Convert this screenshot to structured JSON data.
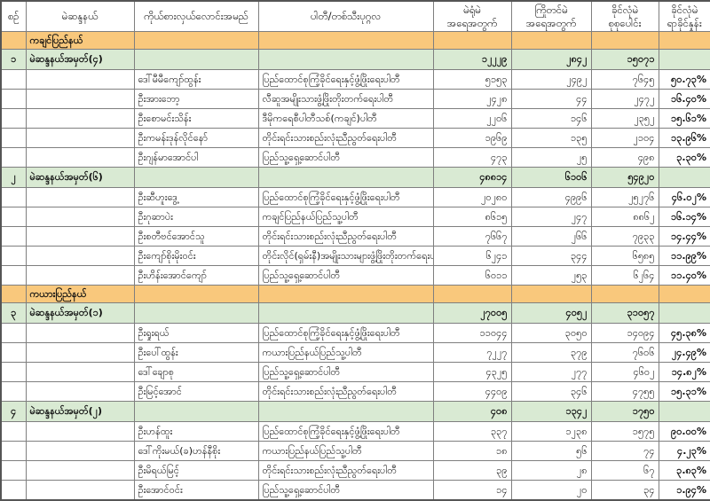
{
  "colors": {
    "state_row_bg": "#F9C87C",
    "total_row_bg": "#D9EAD3",
    "grid_border": "#7f7f7f"
  },
  "table": {
    "headers": [
      "စဉ်",
      "မဲဆန္ဒနယ်",
      "ကိုယ်စားလှယ်လောင်းအမည်",
      "ပါတီ/တစ်သီးပုဂ္ဂလ",
      "မဲရုံမဲ\nအရေအတွက်",
      "ကြိုတင်မဲ\nအရေအတွက်",
      "ခိုင်လုံမဲ\nစုစုပေါင်း",
      "ခိုင်လုံမဲ\nရာခိုင်နှုန်း"
    ],
    "rows": [
      {
        "type": "state",
        "label": "ကချင်ပြည်နယ်"
      },
      {
        "type": "total",
        "no": "၁",
        "constituency": "မဲဆန္ဒနယ်အမှတ်(၄)",
        "booth": "၁၂၂၂၉",
        "advance": "၂၈၄၂",
        "valid": "၁၅၀၇၁"
      },
      {
        "type": "candidate",
        "name": "ဒေါ်မီမီကျော်ထွန်း",
        "party": "ပြည်ထောင်စုကြံ့ခိုင်ရေးနှင့်ဖွံ့ဖြိုးရေးပါတီ",
        "booth": "၅၁၅၃",
        "advance": "၂၄၉၂",
        "valid": "၇၆၄၅",
        "pct": "၅၀.၇၃%"
      },
      {
        "type": "candidate",
        "name": "ဦးအားဘော့",
        "party": "လီဆူအမျိုးသားဖွံ့ဖြိုးတိုးတက်ရေးပါတီ",
        "booth": "၂၄၂၈",
        "advance": "၄၄",
        "valid": "၂၄၇၂",
        "pct": "၁၆.၄၀%"
      },
      {
        "type": "candidate",
        "name": "ဦးစောမင်းသိန်း",
        "party": "ဒီမိုကရေစီပါတီသစ်(ကချင်)ပါတီ",
        "booth": "၂၂၀၆",
        "advance": "၁၄၆",
        "valid": "၂၃၅၂",
        "pct": "၁၅.၆၁%"
      },
      {
        "type": "candidate",
        "name": "ဦးကမန်းဒုန်လိုင်နော်",
        "party": "တိုင်းရင်းသားစည်းလုံးညီညွတ်ရေးပါတီ",
        "booth": "၁၉၆၉",
        "advance": "၁၃၅",
        "valid": "၂၁၀၄",
        "pct": "၁၃.၉၆%"
      },
      {
        "type": "candidate",
        "name": "ဦးဂျန်မာအောင်ပါ",
        "party": "ပြည်သူ့ရှေ့ဆောင်ပါတီ",
        "booth": "၄၇၃",
        "advance": "၂၅",
        "valid": "၄၉၈",
        "pct": "၃.၃၀%"
      },
      {
        "type": "total",
        "no": "၂",
        "constituency": "မဲဆန္ဒနယ်အမှတ်(၆)",
        "booth": "၄၈၈၁၄",
        "advance": "၆၁၀၆",
        "valid": "၅၄၉၂၀"
      },
      {
        "type": "candidate",
        "name": "ဦးဆီဟူးဒွေ့",
        "party": "ပြည်ထောင်စုကြံ့ခိုင်ရေးနှင့်ဖွံ့ဖြိုးရေးပါတီ",
        "booth": "၂၀၂၈၀",
        "advance": "၄၉၉၆",
        "valid": "၂၅၂၇၆",
        "pct": "၄၆.၀၂%"
      },
      {
        "type": "candidate",
        "name": "ဦးဂုဆာပဲး",
        "party": "ကချင်ပြည်နယ်ပြည်သူ့ပါတီ",
        "booth": "၈၆၁၅",
        "advance": "၂၄၇",
        "valid": "၈၈၆၂",
        "pct": "၁၆.၁၄%"
      },
      {
        "type": "candidate",
        "name": "ဦးစတီဗင်အောင်သူ",
        "party": "တိုင်းရင်းသားစည်းလုံးညီညွတ်ရေးပါတီ",
        "booth": "၇၆၆၇",
        "advance": "၂၆၆",
        "valid": "၇၉၃၃",
        "pct": "၁၄.၄၄%"
      },
      {
        "type": "candidate",
        "name": "ဦးကျော်စိုးမိုးဝင်း",
        "party": "တိုင်းလိုင်(ရှမ်းနီ)အမျိုးသားများဖွံ့ဖြိုးတိုးတက်ရေးပါတီ",
        "booth": "၆၂၄၁",
        "advance": "၃၄၄",
        "valid": "၆၅၈၅",
        "pct": "၁၁.၉၉%"
      },
      {
        "type": "candidate",
        "name": "ဦးဟိန်းအောင်ကျော်",
        "party": "ပြည်သူ့ရှေ့ဆောင်ပါတီ",
        "booth": "၆၀၁၁",
        "advance": "၂၅၃",
        "valid": "၆၂၆၄",
        "pct": "၁၁.၄၀%"
      },
      {
        "type": "state",
        "label": "ကယားပြည်နယ်"
      },
      {
        "type": "total",
        "no": "၃",
        "constituency": "မဲဆန္ဒနယ်အမှတ်(၁)",
        "booth": "၂၇၀၀၅",
        "advance": "၄၀၅၂",
        "valid": "၃၁၀၅၇"
      },
      {
        "type": "candidate",
        "name": "ဦးရှုးရယ်",
        "party": "ပြည်ထောင်စုကြံ့ခိုင်ရေးနှင့်ဖွံ့ဖြိုးရေးပါတီ",
        "booth": "၁၁၀၄၄",
        "advance": "၃၀၅၀",
        "valid": "၁၄၀၉၄",
        "pct": "၄၅.၃၈%"
      },
      {
        "type": "candidate",
        "name": "ဦးပေါ်ထွန်း",
        "party": "ကယားပြည်နယ်ပြည်သူ့ပါတီ",
        "booth": "၇၂၂၇",
        "advance": "၃၇၉",
        "valid": "၇၆၀၆",
        "pct": "၂၄.၄၉%"
      },
      {
        "type": "candidate",
        "name": "ဒေါ်ချောစု",
        "party": "ပြည်သူ့ရှေ့ဆောင်ပါတီ",
        "booth": "၄၃၂၅",
        "advance": "၂၇၇",
        "valid": "၄၆၀၂",
        "pct": "၁၄.၈၂%"
      },
      {
        "type": "candidate",
        "name": "ဦးမြင့်အောင်",
        "party": "တိုင်းရင်းသားစည်းလုံးညီညွတ်ရေးပါတီ",
        "booth": "၄၄၀၉",
        "advance": "၃၄၆",
        "valid": "၄၇၅၅",
        "pct": "၁၅.၃၁%"
      },
      {
        "type": "total",
        "no": "၄",
        "constituency": "မဲဆန္ဒနယ်အမှတ်(၂)",
        "booth": "၄၀၈",
        "advance": "၁၃၄၂",
        "valid": "၁၇၅၀"
      },
      {
        "type": "candidate",
        "name": "ဦးဟန်ထူး",
        "party": "ပြည်ထောင်စုကြံ့ခိုင်ရေးနှင့်ဖွံ့ဖြိုးရေးပါတီ",
        "booth": "၃၃၇",
        "advance": "၁၂၃၈",
        "valid": "၁၅၇၅",
        "pct": "၉၀.၀၀%"
      },
      {
        "type": "candidate",
        "name": "ဒေါ်ကိုးမယ်(ခ)ဟန်နီစိုး",
        "party": "ကယားပြည်နယ်ပြည်သူ့ပါတီ",
        "booth": "၁၈",
        "advance": "၅၆",
        "valid": "၇၄",
        "pct": "၄.၂၃%"
      },
      {
        "type": "candidate",
        "name": "ဦးမိရယ်မြင့်",
        "party": "တိုင်းရင်းသားစည်းလုံးညီညွတ်ရေးပါတီ",
        "booth": "၃၉",
        "advance": "၂၈",
        "valid": "၆၇",
        "pct": "၃.၈၃%"
      },
      {
        "type": "candidate",
        "name": "ဦးအောင်ဝင်း",
        "party": "ပြည်သူ့ရှေ့ဆောင်ပါတီ",
        "booth": "၁၄",
        "advance": "၂၀",
        "valid": "၃၄",
        "pct": "၁.၉၄%"
      }
    ]
  }
}
